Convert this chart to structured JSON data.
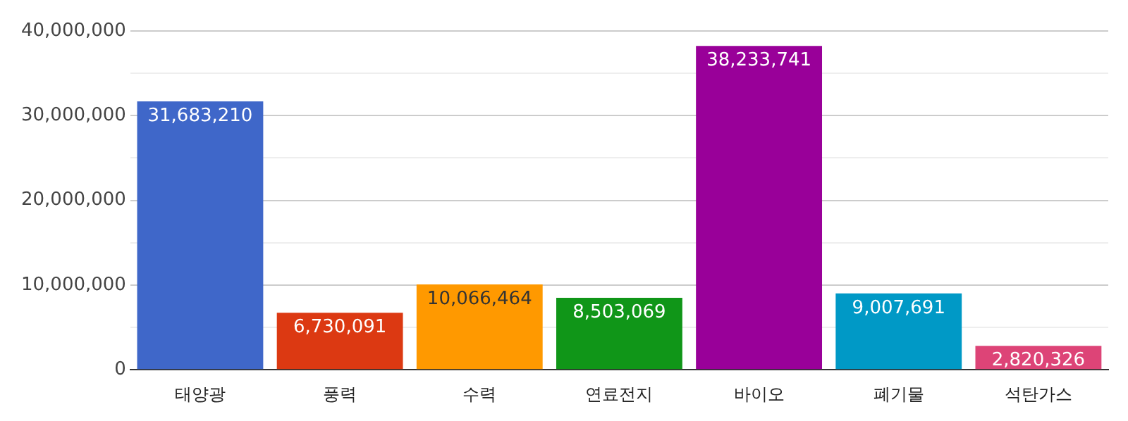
{
  "chart_data": {
    "type": "bar",
    "categories": [
      "태양광",
      "풍력",
      "수력",
      "연료전지",
      "바이오",
      "폐기물",
      "석탄가스"
    ],
    "values": [
      31683210,
      6730091,
      10066464,
      8503069,
      38233741,
      9007691,
      2820326
    ],
    "colors": [
      "#3f67c9",
      "#dc3912",
      "#ff9900",
      "#109618",
      "#990099",
      "#0099c6",
      "#dd4477"
    ],
    "ylim": [
      0,
      40000000
    ],
    "yticks": [
      0,
      {
        "value": 5000000,
        "label": null
      },
      {
        "value": 10000000,
        "label": "10,000,000"
      },
      {
        "value": 15000000,
        "label": null
      },
      {
        "value": 20000000,
        "label": "20,000,000"
      },
      {
        "value": 25000000,
        "label": null
      },
      {
        "value": 30000000,
        "label": "30,000,000"
      },
      {
        "value": 35000000,
        "label": null
      },
      {
        "value": 40000000,
        "label": "40,000,000"
      }
    ],
    "value_labels": [
      "31,683,210",
      "6,730,091",
      "10,066,464",
      "8,503,069",
      "38,233,741",
      "9,007,691",
      "2,820,326"
    ],
    "grid": true,
    "legend": false
  }
}
